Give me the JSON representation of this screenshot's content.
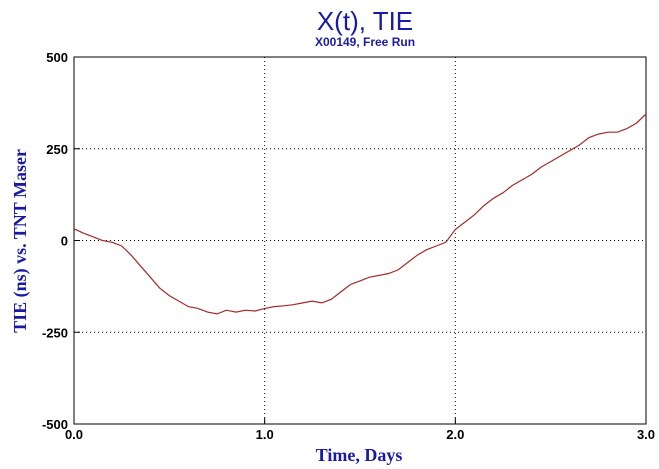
{
  "chart_data": {
    "type": "line",
    "title": "X(t), TIE",
    "subtitle": "X00149, Free Run",
    "xlabel": "Time, Days",
    "ylabel": "TIE (ns) vs. TNT Maser",
    "xlim": [
      0.0,
      3.0
    ],
    "ylim": [
      -500,
      500
    ],
    "x_ticks": [
      "0.0",
      "1.0",
      "2.0",
      "3.0"
    ],
    "y_ticks": [
      "500",
      "250",
      "0",
      "-250",
      "-500"
    ],
    "grid": "dotted",
    "legend": "none",
    "line_color": "#a52a2a",
    "text_color": "#1a1aa6",
    "series": [
      {
        "x": [
          0.0,
          0.05,
          0.1,
          0.15,
          0.2,
          0.25,
          0.3,
          0.35,
          0.4,
          0.45,
          0.5,
          0.55,
          0.6,
          0.65,
          0.7,
          0.75,
          0.8,
          0.85,
          0.9,
          0.95,
          1.0,
          1.05,
          1.1,
          1.15,
          1.2,
          1.25,
          1.3,
          1.35,
          1.4,
          1.45,
          1.5,
          1.55,
          1.6,
          1.65,
          1.7,
          1.75,
          1.8,
          1.85,
          1.9,
          1.95,
          2.0,
          2.05,
          2.1,
          2.15,
          2.2,
          2.25,
          2.3,
          2.35,
          2.4,
          2.45,
          2.5,
          2.55,
          2.6,
          2.65,
          2.7,
          2.75,
          2.8,
          2.85,
          2.9,
          2.95,
          3.0
        ],
        "values": [
          32,
          20,
          10,
          0,
          -5,
          -15,
          -40,
          -70,
          -100,
          -130,
          -150,
          -165,
          -180,
          -185,
          -195,
          -200,
          -190,
          -195,
          -190,
          -192,
          -185,
          -180,
          -178,
          -175,
          -170,
          -165,
          -170,
          -160,
          -140,
          -120,
          -110,
          -100,
          -95,
          -90,
          -80,
          -60,
          -40,
          -25,
          -15,
          -5,
          30,
          50,
          70,
          95,
          115,
          130,
          150,
          165,
          180,
          200,
          215,
          230,
          245,
          260,
          280,
          290,
          295,
          295,
          305,
          320,
          345
        ]
      }
    ]
  }
}
